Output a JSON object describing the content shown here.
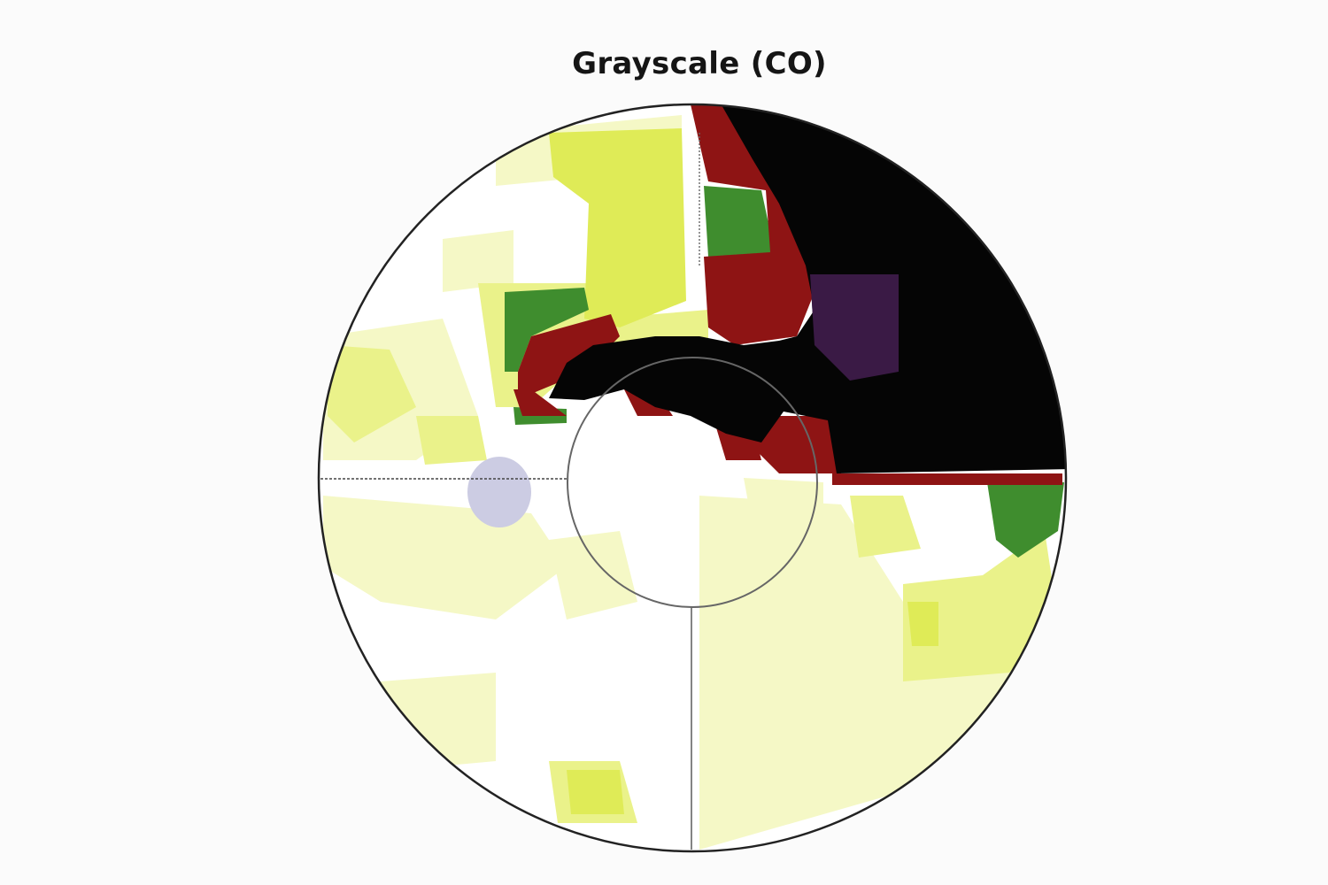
{
  "chart_data": {
    "type": "heatmap",
    "title": "Grayscale (CO)",
    "subtype": "perimetry-grayscale",
    "grid": "pixelated",
    "legend": "none",
    "colors": {
      "background": "#ffffff",
      "pale_yellow": "#f5f8c6",
      "light_yellow": "#eaf28a",
      "yellow": "#dfeb57",
      "green": "#3f8d2e",
      "red": "#8e1414",
      "purple": "#3a1a45",
      "black": "#050505",
      "blind_spot": "#cccce3",
      "outline": "#222222"
    }
  }
}
